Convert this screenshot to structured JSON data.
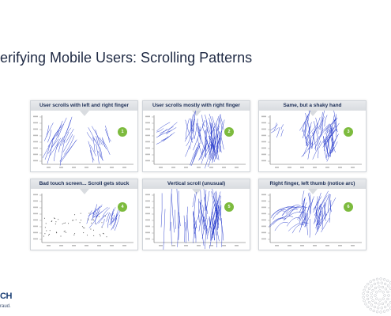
{
  "slide": {
    "title": "erifying Mobile Users: Scrolling Patterns"
  },
  "panels": [
    {
      "label": "User scrolls with left and right finger",
      "badge": "1"
    },
    {
      "label": "User scrolls mostly with right finger",
      "badge": "2"
    },
    {
      "label": "Same, but a shaky hand",
      "badge": "3"
    },
    {
      "label": "Bad touch screen... Scroll gets stuck",
      "badge": "4"
    },
    {
      "label": "Vertical scroll (unusual)",
      "badge": "5"
    },
    {
      "label": "Right finger, left thumb (notice arc)",
      "badge": "6"
    }
  ],
  "footer": {
    "logo": "CH",
    "tagline": "raud."
  },
  "colors": {
    "title": "#1f2a44",
    "stroke": "#1a2fc9",
    "badge": "#7dbb3e",
    "header": "#d9dce0"
  },
  "icons": {
    "badge": "numbered-green-circle",
    "decor": "dotted-circle-ornament"
  }
}
